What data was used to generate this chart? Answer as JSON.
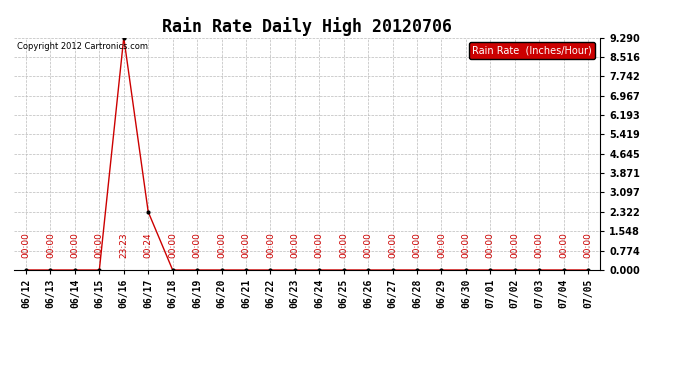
{
  "title": "Rain Rate Daily High 20120706",
  "copyright_text": "Copyright 2012 Cartronics.com",
  "legend_label": "Rain Rate  (Inches/Hour)",
  "legend_bg": "#cc0000",
  "legend_fg": "#ffffff",
  "line_color": "#cc0000",
  "marker_color": "#000000",
  "background_color": "#ffffff",
  "grid_color": "#bbbbbb",
  "x_dates": [
    "06/12",
    "06/13",
    "06/14",
    "06/15",
    "06/16",
    "06/17",
    "06/18",
    "06/19",
    "06/20",
    "06/21",
    "06/22",
    "06/23",
    "06/24",
    "06/25",
    "06/26",
    "06/27",
    "06/28",
    "06/29",
    "06/30",
    "07/01",
    "07/02",
    "07/03",
    "07/04",
    "07/05"
  ],
  "y_values": [
    0.0,
    0.0,
    0.0,
    0.0,
    9.29,
    2.322,
    0.0,
    0.0,
    0.0,
    0.0,
    0.0,
    0.0,
    0.0,
    0.0,
    0.0,
    0.0,
    0.0,
    0.0,
    0.0,
    0.0,
    0.0,
    0.0,
    0.0,
    0.0
  ],
  "time_labels": [
    "00:00",
    "00:00",
    "00:00",
    "00:00",
    "23:23",
    "00:24",
    "00:00",
    "00:00",
    "00:00",
    "00:00",
    "00:00",
    "00:00",
    "00:00",
    "00:00",
    "00:00",
    "00:00",
    "00:00",
    "00:00",
    "00:00",
    "00:00",
    "00:00",
    "00:00",
    "00:00",
    "00:00"
  ],
  "ylim": [
    0.0,
    9.29
  ],
  "yticks": [
    0.0,
    0.774,
    1.548,
    2.322,
    3.097,
    3.871,
    4.645,
    5.419,
    6.193,
    6.967,
    7.742,
    8.516,
    9.29
  ],
  "title_fontsize": 12,
  "tick_fontsize": 7,
  "time_label_fontsize": 6.5
}
